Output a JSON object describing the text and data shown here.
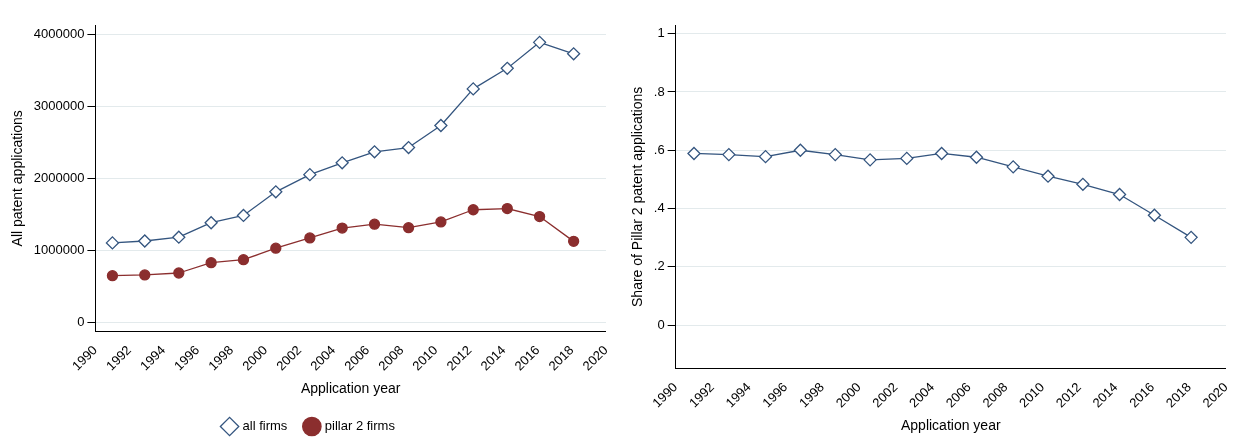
{
  "chart_data": [
    {
      "type": "line",
      "xlabel": "Application year",
      "ylabel": "All patent applications",
      "xlim": [
        1990,
        2020
      ],
      "xticks": [
        1990,
        1992,
        1994,
        1996,
        1998,
        2000,
        2002,
        2004,
        2006,
        2008,
        2010,
        2012,
        2014,
        2016,
        2018,
        2020
      ],
      "ylim": [
        -127000,
        4130000
      ],
      "yticks": [
        0,
        1000000,
        2000000,
        3000000,
        4000000
      ],
      "grid": "y",
      "legend": "bottom",
      "series": [
        {
          "name": "all firms",
          "color": "#34557f",
          "marker": "diamond",
          "x": [
            1991.0,
            1992.9,
            1994.9,
            1996.8,
            1998.7,
            2000.6,
            2002.6,
            2004.5,
            2006.4,
            2008.4,
            2010.3,
            2012.2,
            2014.2,
            2016.1,
            2018.1
          ],
          "values": [
            1106000,
            1132000,
            1185000,
            1386000,
            1487000,
            1815000,
            2053000,
            2217000,
            2370000,
            2429000,
            2735000,
            3243000,
            3529000,
            3889000,
            3730000
          ]
        },
        {
          "name": "pillar 2 firms",
          "color": "#8b2e2e",
          "marker": "circle",
          "x": [
            1991.0,
            1992.9,
            1994.9,
            1996.8,
            1998.7,
            2000.6,
            2002.6,
            2004.5,
            2006.4,
            2008.4,
            2010.3,
            2012.2,
            2014.2,
            2016.1,
            2018.1
          ],
          "values": [
            651000,
            661000,
            688000,
            831000,
            873000,
            1032000,
            1175000,
            1312000,
            1365000,
            1317000,
            1397000,
            1566000,
            1582000,
            1471000,
            1127000
          ]
        }
      ]
    },
    {
      "type": "line",
      "xlabel": "Application year",
      "ylabel": "Share of Pillar 2 patent applications",
      "xlim": [
        1990,
        2020
      ],
      "xticks": [
        1990,
        1992,
        1994,
        1996,
        1998,
        2000,
        2002,
        2004,
        2006,
        2008,
        2010,
        2012,
        2014,
        2016,
        2018,
        2020
      ],
      "ylim": [
        -0.15,
        1.03
      ],
      "yticks": [
        0,
        {
          "value": 0.2,
          "label": ".2"
        },
        {
          "value": 0.4,
          "label": ".4"
        },
        {
          "value": 0.6,
          "label": ".6"
        },
        {
          "value": 0.8,
          "label": ".8"
        },
        1
      ],
      "grid": "y",
      "series": [
        {
          "color": "#34557f",
          "marker": "diamond",
          "x": [
            1991.0,
            1992.9,
            1994.9,
            1996.8,
            1998.7,
            2000.6,
            2002.6,
            2004.5,
            2006.4,
            2008.4,
            2010.3,
            2012.2,
            2014.2,
            2016.1,
            2018.1
          ],
          "values": [
            0.589,
            0.585,
            0.578,
            0.6,
            0.585,
            0.567,
            0.572,
            0.589,
            0.576,
            0.543,
            0.511,
            0.483,
            0.448,
            0.377,
            0.301
          ]
        }
      ]
    }
  ]
}
